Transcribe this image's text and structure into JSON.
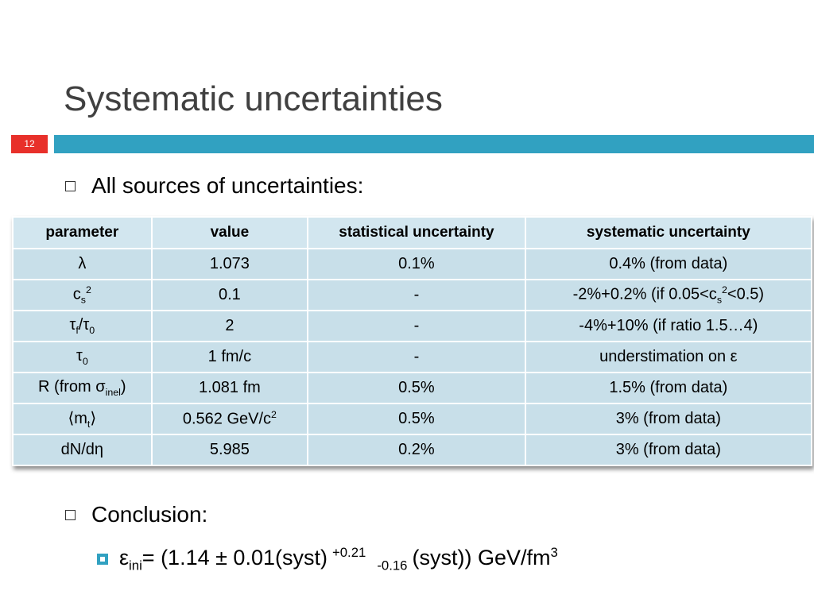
{
  "title": "Systematic uncertainties",
  "slide_number": "12",
  "bullets": [
    "All sources of uncertainties:",
    "Conclusion:"
  ],
  "table": {
    "header": [
      "parameter",
      "value",
      "statistical uncertainty",
      "systematic uncertainty"
    ],
    "rows": [
      [
        [
          "λ"
        ],
        [
          "1.073"
        ],
        [
          "0.1%"
        ],
        [
          "0.4% (from data)"
        ]
      ],
      [
        [
          "c",
          {
            "sub": "s"
          },
          {
            "sup": "2"
          }
        ],
        [
          "0.1"
        ],
        [
          "-"
        ],
        [
          "-2%+0.2% (if 0.05<c",
          {
            "sub": "s"
          },
          {
            "sup": "2"
          },
          "<0.5)"
        ]
      ],
      [
        [
          "τ",
          {
            "sub": "f"
          },
          "/τ",
          {
            "sub": "0"
          }
        ],
        [
          "2"
        ],
        [
          "-"
        ],
        [
          "-4%+10% (if ratio 1.5…4)"
        ]
      ],
      [
        [
          "τ",
          {
            "sub": "0"
          }
        ],
        [
          "1 fm/c"
        ],
        [
          "-"
        ],
        [
          "understimation on ε"
        ]
      ],
      [
        [
          "R (from σ",
          {
            "sub": "inel"
          },
          ")"
        ],
        [
          "1.081 fm"
        ],
        [
          "0.5%"
        ],
        [
          "1.5% (from data)"
        ]
      ],
      [
        [
          "⟨m",
          {
            "sub": "t"
          },
          "⟩"
        ],
        [
          "0.562 GeV/c",
          {
            "sup": "2"
          }
        ],
        [
          "0.5%"
        ],
        [
          "3% (from data)"
        ]
      ],
      [
        [
          "dN/dη"
        ],
        [
          "5.985"
        ],
        [
          "0.2%"
        ],
        [
          "3% (from data)"
        ]
      ]
    ]
  },
  "formula": [
    "ε",
    {
      "sub": "ini"
    },
    "= (1.14 ± 0.01(syst)",
    {
      "sup": "+0.21"
    },
    {
      "sub": "-0.16"
    },
    "(syst)) GeV/fm",
    {
      "sup": "3"
    }
  ]
}
